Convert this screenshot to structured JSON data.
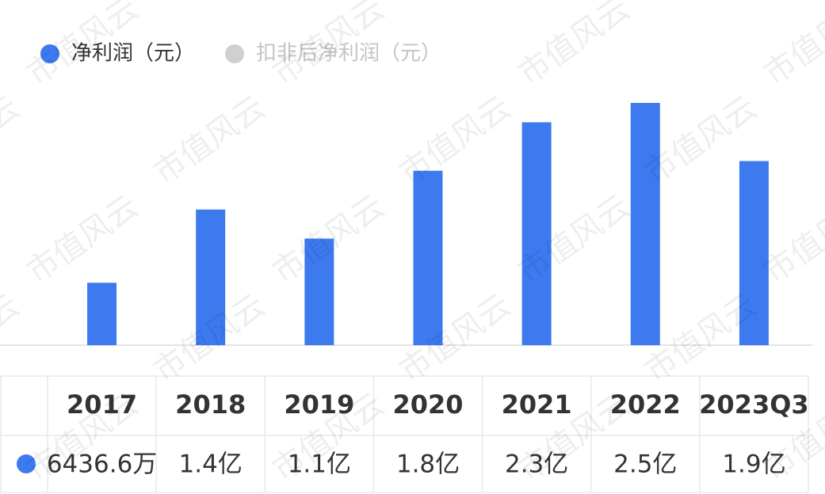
{
  "chart_data": {
    "type": "bar",
    "watermark": "市值风云",
    "categories": [
      "2017",
      "2018",
      "2019",
      "2020",
      "2021",
      "2022",
      "2023Q3"
    ],
    "series": [
      {
        "name": "净利润（元）",
        "color": "#3d7af0",
        "visible": true,
        "values": [
          64366000,
          140000000,
          110000000,
          180000000,
          230000000,
          250000000,
          190000000
        ],
        "value_labels": [
          "6436.6万",
          "1.4亿",
          "1.1亿",
          "1.8亿",
          "2.3亿",
          "2.5亿",
          "1.9亿"
        ]
      },
      {
        "name": "扣非后净利润（元）",
        "color": "#d0d0d0",
        "visible": false
      }
    ]
  }
}
